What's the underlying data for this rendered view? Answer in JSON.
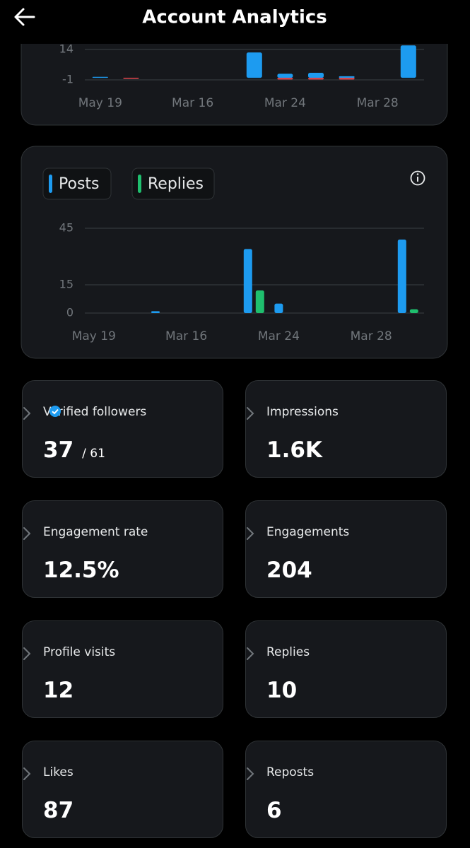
{
  "header": {
    "title": "Account Analytics"
  },
  "charts": [
    {
      "type": "bar",
      "categories": [
        "May 19",
        null,
        null,
        "Mar 16",
        null,
        null,
        "Mar 24",
        null,
        null,
        "Mar 28",
        null
      ],
      "series": [
        {
          "color": "#1d9bf0",
          "values": [
            0.5,
            0,
            0,
            0,
            0,
            12.5,
            2,
            2.5,
            0.8,
            0,
            16
          ]
        },
        {
          "color": "#e0454d",
          "values": [
            0,
            -0.5,
            0,
            0,
            0,
            0,
            -0.8,
            -0.8,
            -0.8,
            0,
            0
          ]
        }
      ],
      "ylim": [
        -2,
        18
      ],
      "yticks": [
        14,
        -1
      ],
      "stacked": true
    },
    {
      "type": "bar",
      "categories": [
        "May 19",
        null,
        null,
        "Mar 16",
        null,
        null,
        "Mar 24",
        null,
        null,
        "Mar 28",
        null
      ],
      "series": [
        {
          "name": "Posts",
          "color": "#1d9bf0",
          "values": [
            0,
            0,
            1,
            0,
            0,
            34,
            5,
            0,
            0,
            0,
            39
          ]
        },
        {
          "name": "Replies",
          "color": "#1fbf6e",
          "values": [
            0,
            0,
            0,
            0,
            0,
            12,
            0,
            0,
            0,
            0,
            2
          ]
        }
      ],
      "ylim": [
        0,
        45
      ],
      "yticks": [
        45,
        15,
        0
      ],
      "stacked": false,
      "legend": "top-left",
      "grid": true
    }
  ],
  "metrics": [
    {
      "label": "Verified followers",
      "value": "37",
      "suffix": "/ 61"
    },
    {
      "label": "Impressions",
      "value": "1.6K"
    },
    {
      "label": "Engagement rate",
      "value": "12.5%"
    },
    {
      "label": "Engagements",
      "value": "204"
    },
    {
      "label": "Profile visits",
      "value": "12"
    },
    {
      "label": "Replies",
      "value": "10"
    },
    {
      "label": "Likes",
      "value": "87"
    },
    {
      "label": "Reposts",
      "value": "6"
    }
  ]
}
